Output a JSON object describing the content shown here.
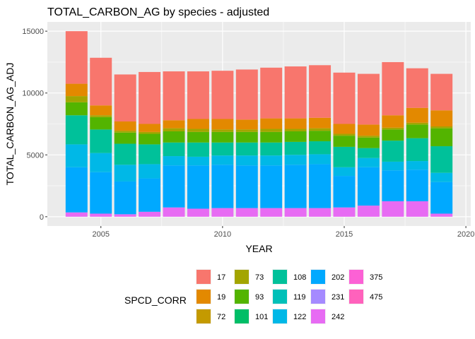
{
  "chart_data": {
    "type": "bar",
    "stacked": true,
    "title": "TOTAL_CARBON_AG by species - adjusted",
    "xlabel": "YEAR",
    "ylabel": "TOTAL_CARBON_AG_ADJ",
    "xlim": [
      2002.8,
      2020.2
    ],
    "ylim": [
      -750,
      15750
    ],
    "x_ticks": [
      2005,
      2010,
      2015,
      2020
    ],
    "y_ticks": [
      0,
      5000,
      10000,
      15000
    ],
    "grid": true,
    "legend_position": "bottom",
    "legend_title": "SPCD_CORR",
    "years": [
      2004,
      2005,
      2006,
      2007,
      2008,
      2009,
      2010,
      2011,
      2012,
      2013,
      2014,
      2015,
      2016,
      2017,
      2018,
      2019
    ],
    "series": [
      {
        "name": "475",
        "color": "#FF62BC",
        "values": [
          0,
          0,
          0,
          0,
          0,
          0,
          0,
          0,
          0,
          0,
          0,
          0,
          0,
          0,
          0,
          0
        ]
      },
      {
        "name": "375",
        "color": "#FC61D5",
        "values": [
          0,
          0,
          0,
          0,
          0,
          0,
          0,
          0,
          0,
          0,
          0,
          0,
          0,
          0,
          0,
          0
        ]
      },
      {
        "name": "242",
        "color": "#E76BF3",
        "values": [
          350,
          250,
          200,
          400,
          750,
          650,
          700,
          700,
          700,
          700,
          700,
          750,
          900,
          1250,
          1250,
          250
        ]
      },
      {
        "name": "231",
        "color": "#A58AFF",
        "values": [
          0,
          0,
          0,
          0,
          0,
          0,
          0,
          0,
          0,
          0,
          0,
          0,
          0,
          0,
          0,
          0
        ]
      },
      {
        "name": "202",
        "color": "#00A9FF",
        "values": [
          3650,
          3350,
          2650,
          2700,
          3400,
          3500,
          3500,
          3450,
          3450,
          3500,
          3550,
          2550,
          3100,
          2500,
          2550,
          2550
        ]
      },
      {
        "name": "122",
        "color": "#00B8E7",
        "values": [
          1850,
          1550,
          1350,
          1150,
          750,
          700,
          750,
          800,
          800,
          800,
          800,
          700,
          750,
          700,
          700,
          750
        ]
      },
      {
        "name": "119",
        "color": "#00C0B8",
        "values": [
          0,
          0,
          0,
          0,
          0,
          0,
          0,
          0,
          0,
          0,
          0,
          0,
          0,
          0,
          0,
          0
        ]
      },
      {
        "name": "108",
        "color": "#00C19A",
        "values": [
          2350,
          1900,
          1700,
          1600,
          1100,
          1150,
          1050,
          1050,
          1050,
          1050,
          1050,
          1650,
          800,
          1700,
          1850,
          2150
        ]
      },
      {
        "name": "101",
        "color": "#00BE67",
        "values": [
          0,
          0,
          0,
          0,
          0,
          0,
          0,
          0,
          0,
          0,
          0,
          0,
          0,
          0,
          0,
          0
        ]
      },
      {
        "name": "93",
        "color": "#53B400",
        "values": [
          1050,
          1000,
          900,
          850,
          900,
          850,
          850,
          850,
          850,
          850,
          850,
          900,
          850,
          900,
          1100,
          1450
        ]
      },
      {
        "name": "73",
        "color": "#A3A500",
        "values": [
          500,
          150,
          150,
          150,
          250,
          250,
          200,
          200,
          250,
          200,
          200,
          150,
          150,
          150,
          150,
          150
        ]
      },
      {
        "name": "72",
        "color": "#C49A00",
        "values": [
          0,
          0,
          0,
          0,
          0,
          0,
          0,
          0,
          0,
          0,
          0,
          0,
          0,
          0,
          0,
          0
        ]
      },
      {
        "name": "19",
        "color": "#E38900",
        "values": [
          1000,
          800,
          750,
          650,
          650,
          800,
          850,
          800,
          850,
          850,
          850,
          800,
          900,
          1000,
          1200,
          1300
        ]
      },
      {
        "name": "17",
        "color": "#F8766D",
        "values": [
          4250,
          3850,
          3800,
          4200,
          3950,
          3850,
          3900,
          4050,
          4100,
          4200,
          4250,
          4150,
          4100,
          4300,
          3200,
          2950
        ]
      }
    ],
    "legend_order": [
      "17",
      "19",
      "72",
      "73",
      "93",
      "101",
      "108",
      "119",
      "122",
      "202",
      "231",
      "242",
      "375",
      "475"
    ]
  }
}
